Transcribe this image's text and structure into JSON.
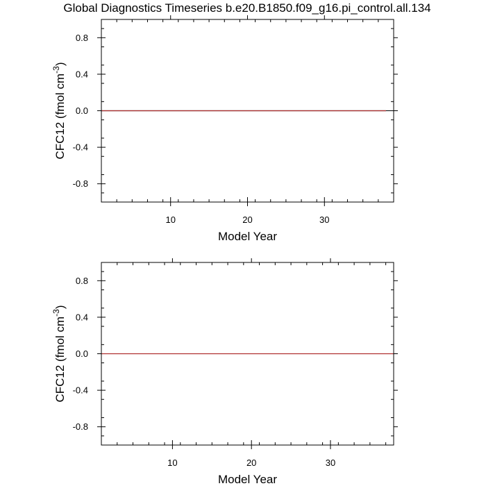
{
  "figure": {
    "title": "Global Diagnostics Timeseries b.e20.B1850.f09_g16.pi_control.all.134"
  },
  "chart_data": [
    {
      "type": "line",
      "xlabel": "Model Year",
      "ylabel_main": "CFC12 (fmol cm",
      "ylabel_sup": "-3",
      "ylabel_tail": ")",
      "xlim": [
        1,
        39
      ],
      "ylim": [
        -1,
        1
      ],
      "xticks": [
        10,
        20,
        30
      ],
      "xtick_labels": [
        "10",
        "20",
        "30"
      ],
      "yticks": [
        0.8,
        0.4,
        0.0,
        -0.4,
        -0.8
      ],
      "ytick_labels": [
        "0.8",
        "0.4",
        "0.0",
        "-0.4",
        "-0.8"
      ],
      "series": [
        {
          "x": [
            1,
            38
          ],
          "y": [
            0,
            0
          ],
          "color": "#000000"
        },
        {
          "x": [
            1,
            38
          ],
          "y": [
            0,
            0
          ],
          "color": "#b03030"
        }
      ],
      "zero_line": true
    },
    {
      "type": "line",
      "xlabel": "Model Year",
      "ylabel_main": "CFC12 (fmol cm",
      "ylabel_sup": "-3",
      "ylabel_tail": ")",
      "xlim": [
        1,
        38
      ],
      "ylim": [
        -1,
        1
      ],
      "xticks": [
        10,
        20,
        30
      ],
      "xtick_labels": [
        "10",
        "20",
        "30"
      ],
      "yticks": [
        0.8,
        0.4,
        0.0,
        -0.4,
        -0.8
      ],
      "ytick_labels": [
        "0.8",
        "0.4",
        "0.0",
        "-0.4",
        "-0.8"
      ],
      "series": [
        {
          "x": [
            1,
            38
          ],
          "y": [
            0,
            0
          ],
          "color": "#b03030"
        }
      ],
      "zero_line": true
    }
  ]
}
